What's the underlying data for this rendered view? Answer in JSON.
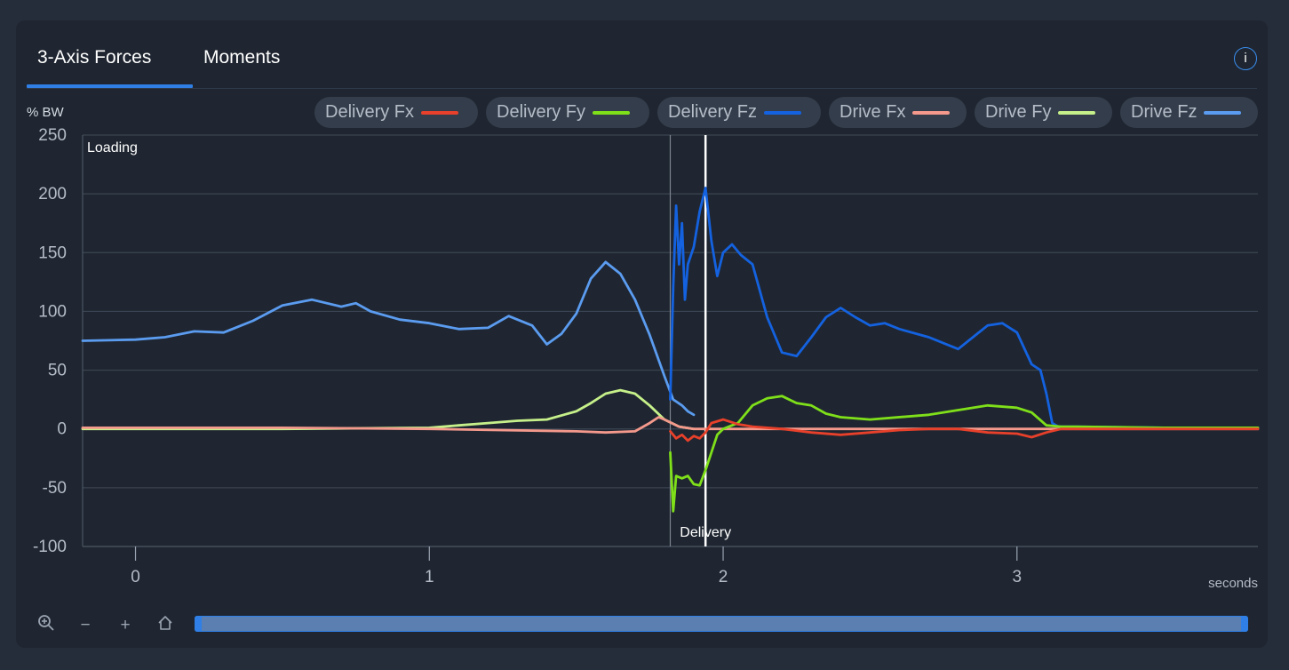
{
  "tabs": [
    {
      "label": "3-Axis Forces",
      "active": true
    },
    {
      "label": "Moments",
      "active": false
    }
  ],
  "info_icon": "i",
  "legend": [
    {
      "label": "Delivery Fx",
      "color": "#e8402a"
    },
    {
      "label": "Delivery Fy",
      "color": "#7fe01a"
    },
    {
      "label": "Delivery Fz",
      "color": "#1462e0"
    },
    {
      "label": "Drive Fx",
      "color": "#f4998c"
    },
    {
      "label": "Drive Fy",
      "color": "#c6f08a"
    },
    {
      "label": "Drive Fz",
      "color": "#5b9cf0"
    }
  ],
  "toolbar": {
    "icons": [
      "zoom-icon",
      "minus-icon",
      "plus-icon",
      "home-icon"
    ],
    "minus_glyph": "−",
    "plus_glyph": "+"
  },
  "chart_data": {
    "type": "line",
    "ylabel": "% BW",
    "xlabel": "seconds",
    "xlim": [
      -0.18,
      3.82
    ],
    "ylim": [
      -100,
      250
    ],
    "yticks": [
      250,
      200,
      150,
      100,
      50,
      0,
      -50,
      -100
    ],
    "xticks": [
      0,
      1,
      2,
      3
    ],
    "grid": true,
    "annotations": [
      {
        "label": "Loading",
        "x": -0.18
      },
      {
        "label": "Delivery",
        "x": 1.94
      }
    ],
    "markers": [
      {
        "x": 1.82,
        "color": "#7d8490"
      },
      {
        "x": 1.94,
        "color": "#ffffff"
      }
    ],
    "series": [
      {
        "name": "Drive Fz",
        "color": "#5b9cf0",
        "x": [
          -0.18,
          0,
          0.1,
          0.2,
          0.3,
          0.4,
          0.5,
          0.6,
          0.7,
          0.75,
          0.8,
          0.9,
          1.0,
          1.1,
          1.2,
          1.27,
          1.35,
          1.4,
          1.45,
          1.5,
          1.55,
          1.6,
          1.65,
          1.7,
          1.75,
          1.8,
          1.83,
          1.86,
          1.88,
          1.9
        ],
        "y": [
          75,
          76,
          78,
          83,
          82,
          92,
          105,
          110,
          104,
          107,
          100,
          93,
          90,
          85,
          86,
          96,
          88,
          72,
          81,
          98,
          128,
          142,
          132,
          110,
          80,
          45,
          25,
          20,
          15,
          12
        ]
      },
      {
        "name": "Drive Fy",
        "color": "#c6f08a",
        "x": [
          -0.18,
          0.5,
          1.0,
          1.1,
          1.2,
          1.3,
          1.4,
          1.5,
          1.55,
          1.6,
          1.65,
          1.7,
          1.75,
          1.8,
          1.85,
          1.9
        ],
        "y": [
          0,
          0,
          1,
          3,
          5,
          7,
          8,
          15,
          22,
          30,
          33,
          30,
          20,
          8,
          2,
          0
        ]
      },
      {
        "name": "Drive Fx",
        "color": "#f4998c",
        "x": [
          -0.18,
          0.5,
          1.0,
          1.5,
          1.6,
          1.7,
          1.75,
          1.78,
          1.8,
          1.85,
          1.9,
          2.0,
          3.0,
          3.82
        ],
        "y": [
          1,
          1,
          0,
          -2,
          -3,
          -2,
          5,
          10,
          8,
          2,
          0,
          0,
          0,
          0
        ]
      },
      {
        "name": "Delivery Fz",
        "color": "#1462e0",
        "x": [
          1.82,
          1.83,
          1.84,
          1.85,
          1.86,
          1.87,
          1.88,
          1.9,
          1.92,
          1.94,
          1.96,
          1.98,
          2.0,
          2.03,
          2.06,
          2.1,
          2.15,
          2.2,
          2.25,
          2.3,
          2.35,
          2.4,
          2.45,
          2.5,
          2.55,
          2.6,
          2.7,
          2.8,
          2.85,
          2.9,
          2.95,
          3.0,
          3.05,
          3.08,
          3.1,
          3.12,
          3.14,
          3.2,
          3.5,
          3.82
        ],
        "y": [
          25,
          120,
          190,
          140,
          175,
          110,
          140,
          155,
          185,
          205,
          160,
          130,
          150,
          157,
          148,
          140,
          95,
          65,
          62,
          78,
          95,
          103,
          95,
          88,
          90,
          85,
          78,
          68,
          78,
          88,
          90,
          82,
          55,
          50,
          30,
          5,
          2,
          2,
          1,
          1
        ]
      },
      {
        "name": "Delivery Fy",
        "color": "#7fe01a",
        "x": [
          1.82,
          1.83,
          1.84,
          1.86,
          1.88,
          1.9,
          1.92,
          1.94,
          1.96,
          1.98,
          2.0,
          2.05,
          2.1,
          2.15,
          2.2,
          2.25,
          2.3,
          2.35,
          2.4,
          2.5,
          2.7,
          2.9,
          3.0,
          3.05,
          3.1,
          3.15,
          3.2,
          3.5,
          3.82
        ],
        "y": [
          -20,
          -70,
          -40,
          -42,
          -40,
          -47,
          -48,
          -35,
          -20,
          -5,
          0,
          5,
          20,
          26,
          28,
          22,
          20,
          13,
          10,
          8,
          12,
          20,
          18,
          14,
          3,
          2,
          2,
          1,
          1
        ]
      },
      {
        "name": "Delivery Fx",
        "color": "#e8402a",
        "x": [
          1.82,
          1.84,
          1.86,
          1.88,
          1.9,
          1.92,
          1.94,
          1.96,
          2.0,
          2.05,
          2.1,
          2.2,
          2.3,
          2.4,
          2.5,
          2.6,
          2.7,
          2.8,
          2.9,
          3.0,
          3.05,
          3.1,
          3.15,
          3.2,
          3.5,
          3.82
        ],
        "y": [
          -2,
          -8,
          -5,
          -10,
          -6,
          -8,
          -3,
          5,
          8,
          4,
          2,
          0,
          -3,
          -5,
          -3,
          -1,
          0,
          0,
          -3,
          -4,
          -7,
          -3,
          0,
          0,
          0,
          0
        ]
      }
    ]
  }
}
